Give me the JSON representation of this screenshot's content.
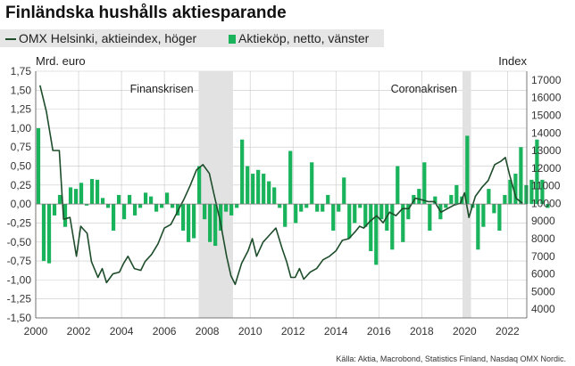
{
  "title": "Finländska hushålls aktiesparande",
  "legend": {
    "line_label": "OMX Helsinki, aktieindex, höger",
    "bar_label": "Aktieköp, netto, vänster"
  },
  "source": "Källa: Aktia, Macrobond, Statistics Finland, Nasdaq OMX Nordic.",
  "colors": {
    "bars": "#18b35a",
    "line": "#1e4d2b",
    "recession_shading": "#e2e2e2",
    "grid": "#c8c8c8"
  },
  "chart_data": {
    "type": "bar",
    "left_axis": {
      "title": "Mrd. euro",
      "range": [
        -1.5,
        1.75
      ],
      "ticks": [
        -1.5,
        -1.25,
        -1.0,
        -0.75,
        -0.5,
        -0.25,
        0.0,
        0.25,
        0.5,
        0.75,
        1.0,
        1.25,
        1.5,
        1.75
      ],
      "tick_labels": [
        "-1,50",
        "-1,25",
        "-1,00",
        "-0,75",
        "-0,50",
        "-0,25",
        "0,00",
        "0,25",
        "0,50",
        "0,75",
        "1,00",
        "1,25",
        "1,50",
        "1,75"
      ]
    },
    "right_axis": {
      "title": "Index",
      "range": [
        3500,
        17500
      ],
      "ticks": [
        4000,
        5000,
        6000,
        7000,
        8000,
        9000,
        10000,
        11000,
        12000,
        13000,
        14000,
        15000,
        16000,
        17000
      ],
      "tick_labels": [
        "4000",
        "5000",
        "6000",
        "7000",
        "8000",
        "9000",
        "10000",
        "11000",
        "12000",
        "13000",
        "14000",
        "15000",
        "16000",
        "17000"
      ]
    },
    "x_axis": {
      "range": [
        2000,
        2022.9
      ],
      "ticks": [
        2000,
        2002,
        2004,
        2006,
        2008,
        2010,
        2012,
        2014,
        2016,
        2018,
        2020,
        2022
      ],
      "tick_labels": [
        "2000",
        "2002",
        "2004",
        "2006",
        "2008",
        "2010",
        "2012",
        "2014",
        "2016",
        "2018",
        "2020",
        "2022"
      ]
    },
    "grid": true,
    "shaded_periods": [
      {
        "label": "Finanskrisen",
        "start": 2007.6,
        "end": 2009.2
      },
      {
        "label": "Coronakrisen",
        "start": 2019.9,
        "end": 2020.3
      }
    ],
    "series": [
      {
        "name": "Aktieköp, netto, vänster",
        "axis": "left",
        "kind": "bar",
        "start": 2000.0,
        "step": 0.25,
        "values": [
          1.0,
          -0.75,
          -0.78,
          -0.15,
          0.12,
          -0.3,
          0.22,
          0.2,
          0.28,
          -0.02,
          0.33,
          0.32,
          0.08,
          -0.05,
          -0.35,
          0.12,
          -0.2,
          0.12,
          -0.15,
          -0.05,
          0.15,
          0.1,
          -0.1,
          -0.05,
          0.15,
          -0.05,
          -0.15,
          -0.35,
          -0.5,
          -0.45,
          0.5,
          -0.2,
          -0.5,
          -0.55,
          -0.35,
          -0.1,
          -0.15,
          -0.05,
          0.85,
          0.5,
          0.4,
          0.45,
          0.4,
          0.3,
          0.22,
          -0.05,
          -0.3,
          0.7,
          -0.25,
          -0.1,
          -0.05,
          0.55,
          -0.1,
          -0.1,
          0.12,
          -0.35,
          -0.1,
          0.35,
          -0.45,
          -0.25,
          -0.05,
          -0.3,
          -0.62,
          -0.8,
          -0.2,
          -0.35,
          -0.6,
          0.5,
          -0.5,
          -0.2,
          0.12,
          0.2,
          0.55,
          -0.35,
          0.1,
          -0.2,
          -0.05,
          0.12,
          0.25,
          0.1,
          0.9,
          -0.05,
          -0.6,
          -0.3,
          0.2,
          -0.12,
          -0.35,
          0.12,
          0.32,
          0.4,
          0.75,
          0.25,
          0.32,
          0.85,
          0.32,
          -0.05
        ]
      },
      {
        "name": "OMX Helsinki, aktieindex, höger",
        "axis": "right",
        "kind": "line",
        "points": [
          [
            2000.2,
            16700
          ],
          [
            2000.5,
            15200
          ],
          [
            2000.8,
            13000
          ],
          [
            2001.1,
            13000
          ],
          [
            2001.3,
            9100
          ],
          [
            2001.6,
            9200
          ],
          [
            2001.9,
            7000
          ],
          [
            2002.1,
            8700
          ],
          [
            2002.4,
            8300
          ],
          [
            2002.6,
            6700
          ],
          [
            2002.9,
            5800
          ],
          [
            2003.1,
            6300
          ],
          [
            2003.3,
            5500
          ],
          [
            2003.6,
            6000
          ],
          [
            2003.9,
            6100
          ],
          [
            2004.1,
            6600
          ],
          [
            2004.3,
            7000
          ],
          [
            2004.6,
            6300
          ],
          [
            2004.9,
            6200
          ],
          [
            2005.1,
            6700
          ],
          [
            2005.4,
            7100
          ],
          [
            2005.7,
            7700
          ],
          [
            2006.0,
            8600
          ],
          [
            2006.3,
            8800
          ],
          [
            2006.6,
            9500
          ],
          [
            2006.9,
            10200
          ],
          [
            2007.2,
            11000
          ],
          [
            2007.5,
            11900
          ],
          [
            2007.8,
            12200
          ],
          [
            2008.1,
            11700
          ],
          [
            2008.3,
            10600
          ],
          [
            2008.6,
            9000
          ],
          [
            2008.9,
            7000
          ],
          [
            2009.1,
            5900
          ],
          [
            2009.3,
            5400
          ],
          [
            2009.6,
            6600
          ],
          [
            2009.9,
            7300
          ],
          [
            2010.1,
            8000
          ],
          [
            2010.3,
            7000
          ],
          [
            2010.6,
            7800
          ],
          [
            2010.9,
            8200
          ],
          [
            2011.2,
            8600
          ],
          [
            2011.5,
            7400
          ],
          [
            2011.7,
            6700
          ],
          [
            2011.9,
            5800
          ],
          [
            2012.1,
            5800
          ],
          [
            2012.3,
            6300
          ],
          [
            2012.5,
            5700
          ],
          [
            2012.8,
            6100
          ],
          [
            2013.1,
            6300
          ],
          [
            2013.4,
            6800
          ],
          [
            2013.7,
            7000
          ],
          [
            2014.0,
            7300
          ],
          [
            2014.3,
            7900
          ],
          [
            2014.6,
            8000
          ],
          [
            2014.9,
            8400
          ],
          [
            2015.1,
            8700
          ],
          [
            2015.3,
            8600
          ],
          [
            2015.6,
            9000
          ],
          [
            2015.9,
            9300
          ],
          [
            2016.2,
            8900
          ],
          [
            2016.5,
            9500
          ],
          [
            2016.8,
            9300
          ],
          [
            2017.1,
            9700
          ],
          [
            2017.4,
            9700
          ],
          [
            2017.7,
            10300
          ],
          [
            2018.0,
            10200
          ],
          [
            2018.3,
            10100
          ],
          [
            2018.6,
            10100
          ],
          [
            2018.9,
            9500
          ],
          [
            2019.2,
            9700
          ],
          [
            2019.5,
            9900
          ],
          [
            2019.8,
            10000
          ],
          [
            2020.0,
            10600
          ],
          [
            2020.2,
            9200
          ],
          [
            2020.5,
            10400
          ],
          [
            2020.8,
            10900
          ],
          [
            2021.1,
            11300
          ],
          [
            2021.4,
            12200
          ],
          [
            2021.7,
            12400
          ],
          [
            2021.9,
            12600
          ],
          [
            2022.1,
            11600
          ],
          [
            2022.4,
            10300
          ],
          [
            2022.7,
            10000
          ]
        ]
      }
    ]
  }
}
